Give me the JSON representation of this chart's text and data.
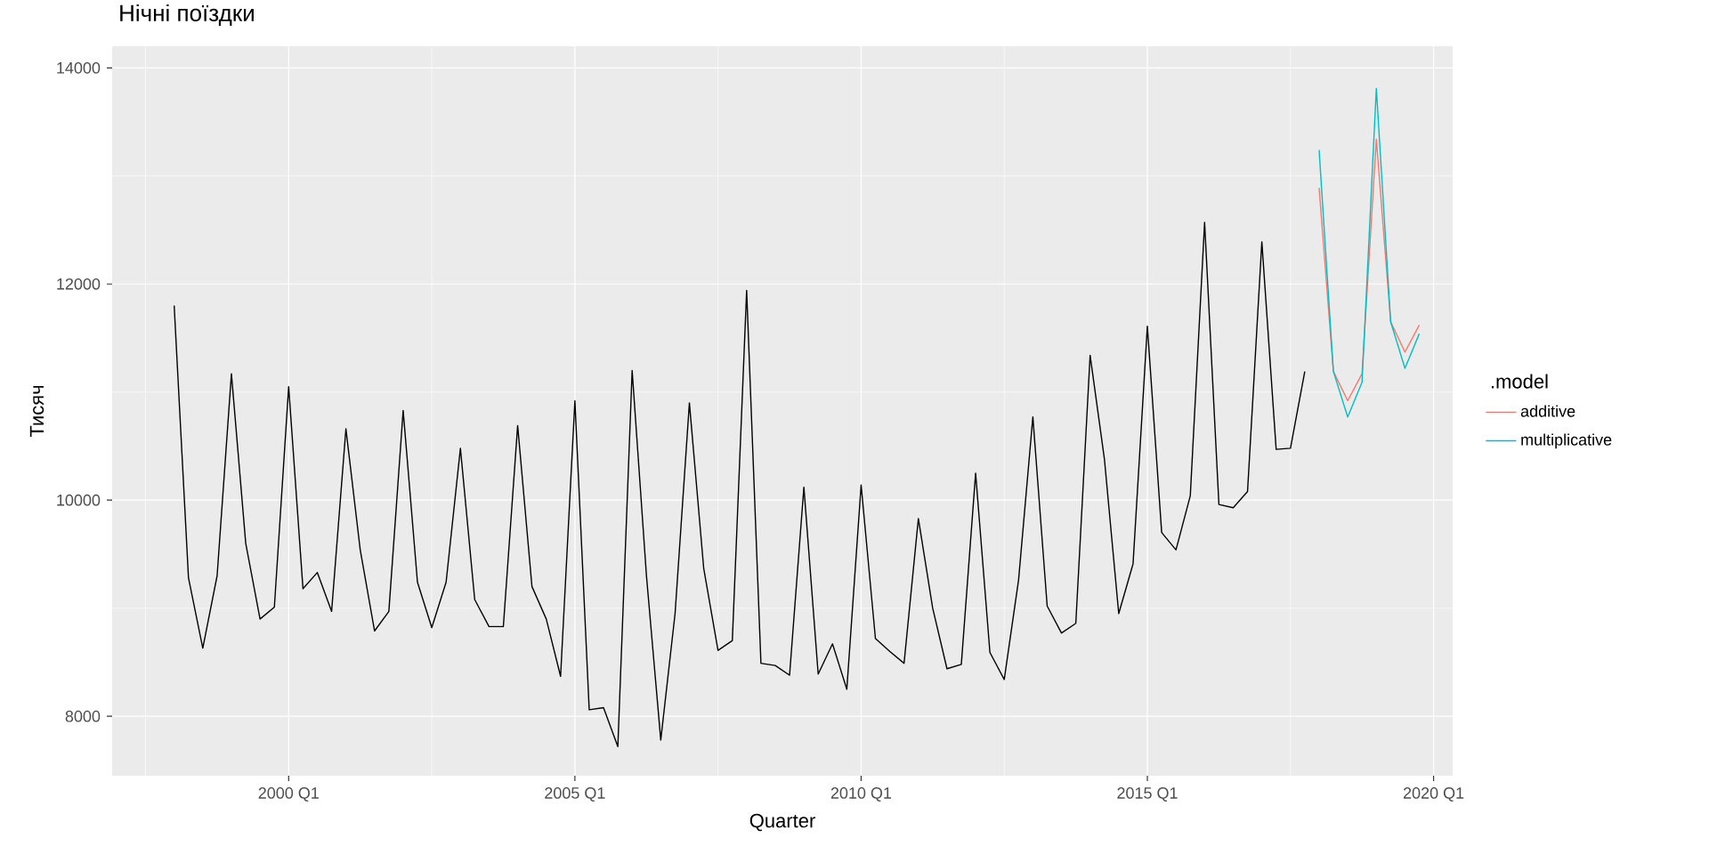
{
  "chart_data": {
    "type": "line",
    "title": "Нічні поїздки",
    "xlabel": "Quarter",
    "ylabel": "Тисяч",
    "legend_title": ".model",
    "series": [
      {
        "color": "#000000",
        "x": [
          "1998-01",
          "1998-04",
          "1998-07",
          "1998-10",
          "1999-01",
          "1999-04",
          "1999-07",
          "1999-10",
          "2000-01",
          "2000-04",
          "2000-07",
          "2000-10",
          "2001-01",
          "2001-04",
          "2001-07",
          "2001-10",
          "2002-01",
          "2002-04",
          "2002-07",
          "2002-10",
          "2003-01",
          "2003-04",
          "2003-07",
          "2003-10",
          "2004-01",
          "2004-04",
          "2004-07",
          "2004-10",
          "2005-01",
          "2005-04",
          "2005-07",
          "2005-10",
          "2006-01",
          "2006-04",
          "2006-07",
          "2006-10",
          "2007-01",
          "2007-04",
          "2007-07",
          "2007-10",
          "2008-01",
          "2008-04",
          "2008-07",
          "2008-10",
          "2009-01",
          "2009-04",
          "2009-07",
          "2009-10",
          "2010-01",
          "2010-04",
          "2010-07",
          "2010-10",
          "2011-01",
          "2011-04",
          "2011-07",
          "2011-10",
          "2012-01",
          "2012-04",
          "2012-07",
          "2012-10",
          "2013-01",
          "2013-04",
          "2013-07",
          "2013-10",
          "2014-01",
          "2014-04",
          "2014-07",
          "2014-10",
          "2015-01",
          "2015-04",
          "2015-07",
          "2015-10",
          "2016-01",
          "2016-04",
          "2016-07",
          "2016-10",
          "2017-01",
          "2017-04",
          "2017-07",
          "2017-10"
        ],
        "values": [
          11800,
          9280,
          8630,
          9300,
          11170,
          9600,
          8900,
          9010,
          11050,
          9180,
          9330,
          8970,
          10660,
          9540,
          8790,
          8970,
          10830,
          9240,
          8820,
          9240,
          10480,
          9080,
          8830,
          8830,
          10690,
          9200,
          8900,
          8370,
          10920,
          8060,
          8080,
          7720,
          11200,
          9300,
          7780,
          8950,
          10900,
          9370,
          8610,
          8700,
          11940,
          8490,
          8470,
          8380,
          10120,
          8390,
          8670,
          8250,
          10140,
          8720,
          8600,
          8490,
          9830,
          9000,
          8440,
          8480,
          10250,
          8590,
          8340,
          9260,
          10770,
          9020,
          8770,
          8860,
          11340,
          10380,
          8950,
          9410,
          11610,
          9700,
          9540,
          10040,
          12570,
          9960,
          9930,
          10080,
          12390,
          10470,
          10480,
          11190
        ]
      },
      {
        "name": "additive",
        "color": "#f8766d",
        "x": [
          "2018-01",
          "2018-04",
          "2018-07",
          "2018-10",
          "2019-01",
          "2019-04",
          "2019-07",
          "2019-10"
        ],
        "values": [
          12890,
          11190,
          10920,
          11170,
          13340,
          11650,
          11370,
          11620
        ]
      },
      {
        "name": "multiplicative",
        "color": "#00bfc4",
        "x": [
          "2018-01",
          "2018-04",
          "2018-07",
          "2018-10",
          "2019-01",
          "2019-04",
          "2019-07",
          "2019-10"
        ],
        "values": [
          13240,
          11190,
          10770,
          11090,
          13810,
          11650,
          11220,
          11540
        ]
      }
    ],
    "xlim": [
      "1996-12",
      "2020-05"
    ],
    "ylim": [
      7450,
      14200
    ],
    "xticks": [
      {
        "value": "2000-01",
        "label": "2000 Q1"
      },
      {
        "value": "2005-01",
        "label": "2005 Q1"
      },
      {
        "value": "2010-01",
        "label": "2010 Q1"
      },
      {
        "value": "2015-01",
        "label": "2015 Q1"
      },
      {
        "value": "2020-01",
        "label": "2020 Q1"
      }
    ],
    "yticks": [
      8000,
      10000,
      12000,
      14000
    ],
    "grid": true,
    "legend": "right"
  }
}
